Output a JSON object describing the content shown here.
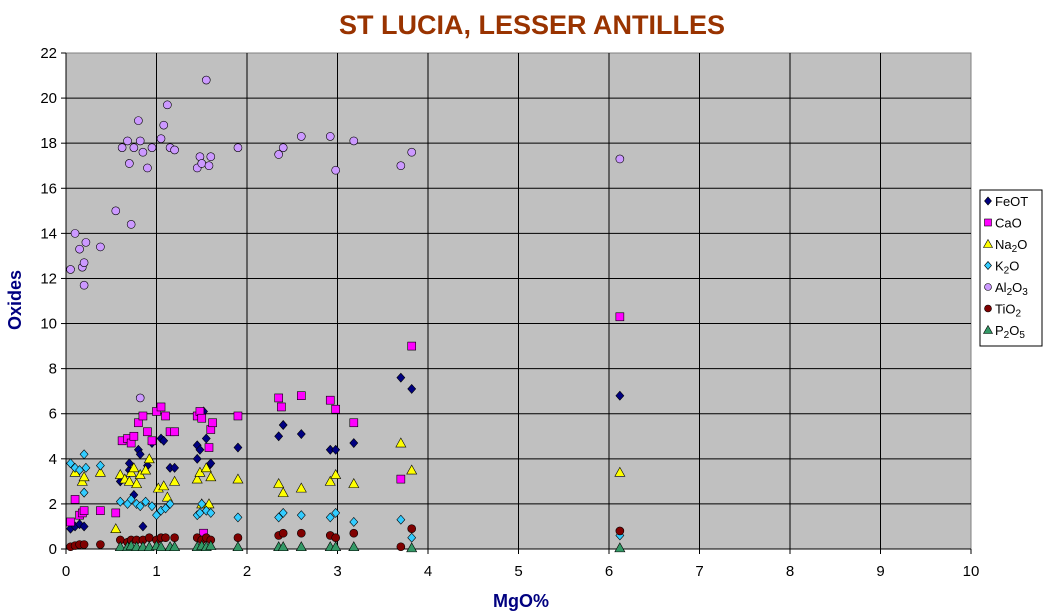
{
  "chart_data": {
    "type": "scatter",
    "title": "ST LUCIA, LESSER ANTILLES",
    "xlabel": "MgO%",
    "ylabel": "Oxides",
    "xlim": [
      0,
      10
    ],
    "ylim": [
      0,
      22
    ],
    "xticks": [
      "0",
      "1",
      "2",
      "3",
      "4",
      "5",
      "6",
      "7",
      "8",
      "9",
      "10"
    ],
    "yticks": [
      "0",
      "2",
      "4",
      "6",
      "8",
      "10",
      "12",
      "14",
      "16",
      "18",
      "20",
      "22"
    ],
    "grid": true,
    "plot_background": "#c0c0c0",
    "legend_position": "right",
    "series": [
      {
        "name": "FeOT",
        "name_main": "FeOT",
        "name_parts": [
          [
            "FeOT",
            false
          ]
        ],
        "marker": "diamond",
        "color": "#000080",
        "points": [
          [
            0.05,
            0.9
          ],
          [
            0.1,
            1.0
          ],
          [
            0.15,
            1.1
          ],
          [
            0.2,
            1.0
          ],
          [
            0.6,
            3.0
          ],
          [
            0.7,
            3.5
          ],
          [
            0.7,
            3.8
          ],
          [
            0.75,
            2.4
          ],
          [
            0.8,
            4.4
          ],
          [
            0.82,
            4.2
          ],
          [
            0.85,
            1.0
          ],
          [
            0.9,
            3.7
          ],
          [
            0.95,
            4.7
          ],
          [
            1.05,
            4.9
          ],
          [
            1.08,
            4.8
          ],
          [
            1.15,
            3.6
          ],
          [
            1.2,
            3.6
          ],
          [
            1.45,
            4.0
          ],
          [
            1.45,
            4.6
          ],
          [
            1.48,
            4.4
          ],
          [
            1.52,
            6.1
          ],
          [
            1.55,
            4.9
          ],
          [
            1.58,
            3.7
          ],
          [
            1.6,
            3.8
          ],
          [
            1.9,
            4.5
          ],
          [
            2.35,
            5.0
          ],
          [
            2.4,
            5.5
          ],
          [
            2.6,
            5.1
          ],
          [
            2.92,
            4.4
          ],
          [
            2.98,
            4.4
          ],
          [
            3.18,
            4.7
          ],
          [
            3.7,
            7.6
          ],
          [
            3.82,
            7.1
          ],
          [
            6.12,
            6.8
          ]
        ]
      },
      {
        "name": "CaO",
        "name_main": "CaO",
        "name_parts": [
          [
            "CaO",
            false
          ]
        ],
        "marker": "square",
        "color": "#ff00ff",
        "points": [
          [
            0.05,
            1.2
          ],
          [
            0.1,
            2.2
          ],
          [
            0.15,
            1.5
          ],
          [
            0.18,
            1.6
          ],
          [
            0.2,
            1.7
          ],
          [
            0.38,
            1.7
          ],
          [
            0.55,
            1.6
          ],
          [
            0.62,
            4.8
          ],
          [
            0.68,
            4.9
          ],
          [
            0.72,
            4.7
          ],
          [
            0.75,
            5.0
          ],
          [
            0.8,
            5.6
          ],
          [
            0.85,
            5.9
          ],
          [
            0.9,
            5.2
          ],
          [
            0.95,
            4.8
          ],
          [
            1.0,
            6.1
          ],
          [
            1.05,
            6.3
          ],
          [
            1.1,
            5.9
          ],
          [
            1.15,
            5.2
          ],
          [
            1.2,
            5.2
          ],
          [
            1.45,
            5.9
          ],
          [
            1.48,
            6.1
          ],
          [
            1.5,
            5.8
          ],
          [
            1.52,
            0.7
          ],
          [
            1.58,
            4.5
          ],
          [
            1.6,
            5.3
          ],
          [
            1.62,
            5.6
          ],
          [
            1.9,
            5.9
          ],
          [
            2.35,
            6.7
          ],
          [
            2.38,
            6.3
          ],
          [
            2.6,
            6.8
          ],
          [
            2.92,
            6.6
          ],
          [
            2.98,
            6.2
          ],
          [
            3.18,
            5.6
          ],
          [
            3.7,
            3.1
          ],
          [
            3.82,
            9.0
          ],
          [
            6.12,
            10.3
          ]
        ]
      },
      {
        "name": "Na2O",
        "name_main": "Na",
        "name_parts": [
          [
            "Na",
            false
          ],
          [
            "2",
            true
          ],
          [
            "O",
            false
          ]
        ],
        "marker": "triangle",
        "color": "#ffff00",
        "points": [
          [
            0.1,
            3.4
          ],
          [
            0.18,
            3.0
          ],
          [
            0.2,
            3.2
          ],
          [
            0.38,
            3.4
          ],
          [
            0.55,
            0.9
          ],
          [
            0.6,
            3.3
          ],
          [
            0.65,
            3.1
          ],
          [
            0.7,
            3.0
          ],
          [
            0.72,
            3.4
          ],
          [
            0.75,
            3.6
          ],
          [
            0.78,
            2.9
          ],
          [
            0.82,
            3.3
          ],
          [
            0.88,
            3.5
          ],
          [
            0.92,
            4.0
          ],
          [
            1.02,
            2.7
          ],
          [
            1.08,
            2.8
          ],
          [
            1.12,
            2.3
          ],
          [
            1.2,
            3.0
          ],
          [
            1.45,
            3.1
          ],
          [
            1.48,
            3.4
          ],
          [
            1.5,
            2.0
          ],
          [
            1.55,
            3.6
          ],
          [
            1.58,
            2.0
          ],
          [
            1.6,
            3.2
          ],
          [
            1.9,
            3.1
          ],
          [
            2.35,
            2.9
          ],
          [
            2.4,
            2.5
          ],
          [
            2.6,
            2.7
          ],
          [
            2.92,
            3.0
          ],
          [
            2.98,
            3.3
          ],
          [
            3.18,
            2.9
          ],
          [
            3.7,
            4.7
          ],
          [
            3.82,
            3.5
          ],
          [
            6.12,
            3.4
          ]
        ]
      },
      {
        "name": "K2O",
        "name_main": "K",
        "name_parts": [
          [
            "K",
            false
          ],
          [
            "2",
            true
          ],
          [
            "O",
            false
          ]
        ],
        "marker": "diamond",
        "color": "#33ccff",
        "points": [
          [
            0.05,
            3.8
          ],
          [
            0.1,
            3.6
          ],
          [
            0.15,
            3.5
          ],
          [
            0.2,
            4.2
          ],
          [
            0.22,
            3.6
          ],
          [
            0.2,
            2.5
          ],
          [
            0.38,
            3.7
          ],
          [
            0.6,
            2.1
          ],
          [
            0.68,
            2.0
          ],
          [
            0.72,
            2.2
          ],
          [
            0.78,
            2.0
          ],
          [
            0.82,
            1.9
          ],
          [
            0.88,
            2.1
          ],
          [
            0.95,
            1.9
          ],
          [
            1.0,
            1.5
          ],
          [
            1.05,
            1.7
          ],
          [
            1.1,
            1.8
          ],
          [
            1.15,
            2.0
          ],
          [
            1.45,
            1.5
          ],
          [
            1.48,
            1.6
          ],
          [
            1.5,
            2.0
          ],
          [
            1.55,
            1.7
          ],
          [
            1.6,
            1.6
          ],
          [
            1.9,
            1.4
          ],
          [
            2.35,
            1.4
          ],
          [
            2.4,
            1.6
          ],
          [
            2.6,
            1.5
          ],
          [
            2.92,
            1.4
          ],
          [
            2.98,
            1.6
          ],
          [
            3.18,
            1.2
          ],
          [
            3.7,
            1.3
          ],
          [
            3.82,
            0.5
          ],
          [
            6.12,
            0.6
          ]
        ]
      },
      {
        "name": "Al2O3",
        "name_main": "Al",
        "name_parts": [
          [
            "Al",
            false
          ],
          [
            "2",
            true
          ],
          [
            "O",
            false
          ],
          [
            "3",
            true
          ]
        ],
        "marker": "circle",
        "color": "#cc99ff",
        "points": [
          [
            0.05,
            12.4
          ],
          [
            0.1,
            14.0
          ],
          [
            0.15,
            13.3
          ],
          [
            0.18,
            12.5
          ],
          [
            0.2,
            12.7
          ],
          [
            0.2,
            11.7
          ],
          [
            0.38,
            13.4
          ],
          [
            0.22,
            13.6
          ],
          [
            0.55,
            15.0
          ],
          [
            0.62,
            17.8
          ],
          [
            0.68,
            18.1
          ],
          [
            0.7,
            17.1
          ],
          [
            0.72,
            14.4
          ],
          [
            0.75,
            17.8
          ],
          [
            0.8,
            19.0
          ],
          [
            0.82,
            18.1
          ],
          [
            0.85,
            17.6
          ],
          [
            0.9,
            16.9
          ],
          [
            0.95,
            17.8
          ],
          [
            1.05,
            18.2
          ],
          [
            1.08,
            18.8
          ],
          [
            1.12,
            19.7
          ],
          [
            1.15,
            17.8
          ],
          [
            1.2,
            17.7
          ],
          [
            1.45,
            16.9
          ],
          [
            1.48,
            17.4
          ],
          [
            1.5,
            17.1
          ],
          [
            1.55,
            20.8
          ],
          [
            1.58,
            17.0
          ],
          [
            1.6,
            17.4
          ],
          [
            1.9,
            17.8
          ],
          [
            2.35,
            17.5
          ],
          [
            2.4,
            17.8
          ],
          [
            2.6,
            18.3
          ],
          [
            2.92,
            18.3
          ],
          [
            2.98,
            16.8
          ],
          [
            3.18,
            18.1
          ],
          [
            3.7,
            17.0
          ],
          [
            3.82,
            17.6
          ],
          [
            6.12,
            17.3
          ],
          [
            0.82,
            6.7
          ]
        ]
      },
      {
        "name": "TiO2",
        "name_main": "Ti",
        "name_parts": [
          [
            "TiO",
            false
          ],
          [
            "2",
            true
          ]
        ],
        "marker": "circle",
        "color": "#800000",
        "points": [
          [
            0.05,
            0.1
          ],
          [
            0.1,
            0.15
          ],
          [
            0.15,
            0.2
          ],
          [
            0.2,
            0.2
          ],
          [
            0.38,
            0.2
          ],
          [
            0.6,
            0.4
          ],
          [
            0.68,
            0.3
          ],
          [
            0.72,
            0.4
          ],
          [
            0.78,
            0.4
          ],
          [
            0.85,
            0.4
          ],
          [
            0.92,
            0.5
          ],
          [
            1.0,
            0.4
          ],
          [
            1.05,
            0.5
          ],
          [
            1.1,
            0.5
          ],
          [
            1.2,
            0.5
          ],
          [
            1.45,
            0.5
          ],
          [
            1.5,
            0.4
          ],
          [
            1.55,
            0.5
          ],
          [
            1.6,
            0.4
          ],
          [
            1.9,
            0.5
          ],
          [
            2.35,
            0.6
          ],
          [
            2.4,
            0.7
          ],
          [
            2.6,
            0.7
          ],
          [
            2.92,
            0.6
          ],
          [
            2.98,
            0.5
          ],
          [
            3.18,
            0.7
          ],
          [
            3.7,
            0.1
          ],
          [
            3.82,
            0.9
          ],
          [
            6.12,
            0.8
          ]
        ]
      },
      {
        "name": "P2O5",
        "name_main": "P",
        "name_parts": [
          [
            "P",
            false
          ],
          [
            "2",
            true
          ],
          [
            "O",
            false
          ],
          [
            "5",
            true
          ]
        ],
        "marker": "triangle",
        "color": "#339966",
        "points": [
          [
            0.6,
            0.1
          ],
          [
            0.68,
            0.1
          ],
          [
            0.72,
            0.15
          ],
          [
            0.78,
            0.1
          ],
          [
            0.85,
            0.1
          ],
          [
            0.92,
            0.1
          ],
          [
            1.0,
            0.15
          ],
          [
            1.05,
            0.1
          ],
          [
            1.15,
            0.1
          ],
          [
            1.2,
            0.1
          ],
          [
            1.45,
            0.1
          ],
          [
            1.5,
            0.15
          ],
          [
            1.55,
            0.1
          ],
          [
            1.6,
            0.15
          ],
          [
            1.9,
            0.1
          ],
          [
            2.35,
            0.1
          ],
          [
            2.4,
            0.1
          ],
          [
            2.6,
            0.1
          ],
          [
            2.92,
            0.1
          ],
          [
            2.98,
            0.1
          ],
          [
            3.18,
            0.1
          ],
          [
            3.82,
            0.05
          ],
          [
            6.12,
            0.05
          ]
        ]
      }
    ]
  }
}
